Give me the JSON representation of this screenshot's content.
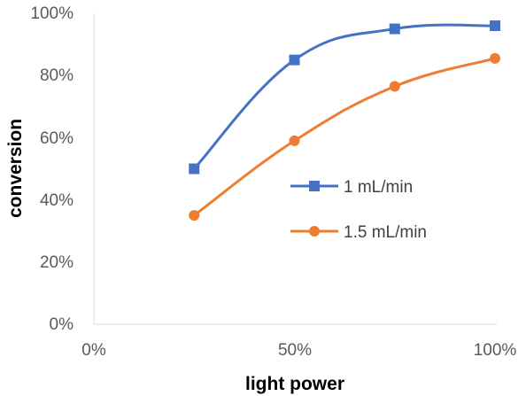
{
  "chart_data": {
    "type": "line",
    "xlabel": "light power",
    "ylabel": "conversion",
    "xlim": [
      0,
      100
    ],
    "ylim": [
      0,
      100
    ],
    "x_ticks": [
      "0%",
      "50%",
      "100%"
    ],
    "y_ticks": [
      "0%",
      "20%",
      "40%",
      "60%",
      "80%",
      "100%"
    ],
    "grid": false,
    "legend_position": "right",
    "series": [
      {
        "name": "1 mL/min",
        "color": "#4472C4",
        "marker": "square",
        "x": [
          25,
          50,
          75,
          100
        ],
        "y": [
          50,
          85,
          95,
          96
        ]
      },
      {
        "name": "1.5 mL/min",
        "color": "#ED7D31",
        "marker": "circle",
        "x": [
          25,
          50,
          75,
          100
        ],
        "y": [
          35,
          59,
          76.5,
          85.5
        ]
      }
    ]
  }
}
